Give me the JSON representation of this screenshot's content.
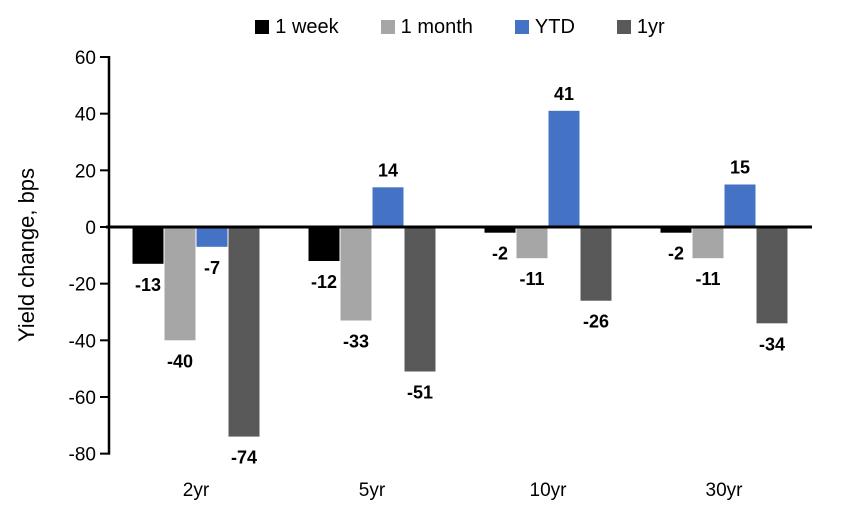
{
  "chart_data": {
    "type": "bar",
    "title": "",
    "ylabel": "Yield change, bps",
    "xlabel": "",
    "ylim": [
      -80,
      60
    ],
    "ytick_step": 20,
    "grid": false,
    "legend_position": "top",
    "data_labels": true,
    "categories": [
      "2yr",
      "5yr",
      "10yr",
      "30yr"
    ],
    "series": [
      {
        "name": "1 week",
        "color": "#000000",
        "values": [
          -13,
          -12,
          -2,
          -2
        ]
      },
      {
        "name": "1 month",
        "color": "#A6A6A6",
        "values": [
          -40,
          -33,
          -11,
          -11
        ]
      },
      {
        "name": "YTD",
        "color": "#4472C4",
        "values": [
          -7,
          14,
          41,
          15
        ]
      },
      {
        "name": "1yr",
        "color": "#595959",
        "values": [
          -74,
          -51,
          -26,
          -34
        ]
      }
    ],
    "axis_color": "#000000"
  }
}
